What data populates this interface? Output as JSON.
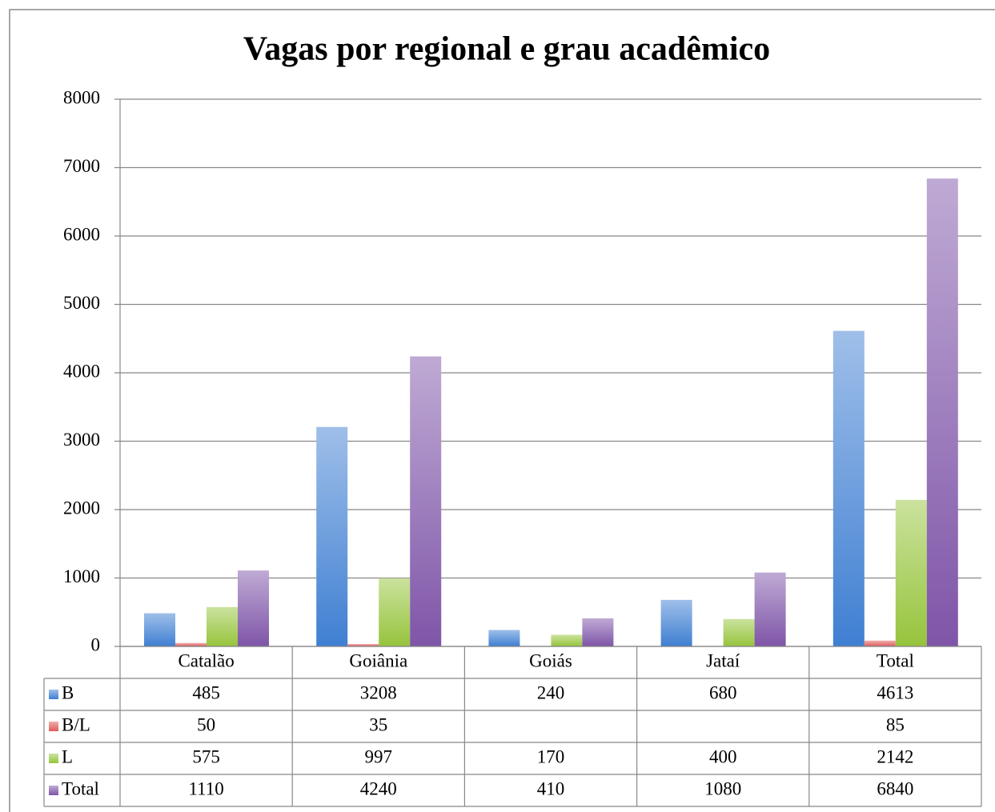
{
  "chart_data": {
    "type": "bar",
    "title": "Vagas por regional e grau acadêmico",
    "categories": [
      "Catalão",
      "Goiânia",
      "Goiás",
      "Jataí",
      "Total"
    ],
    "series": [
      {
        "name": "B",
        "color": "#3f7fd2",
        "values": [
          485,
          3208,
          240,
          680,
          4613
        ]
      },
      {
        "name": "B/L",
        "color": "#e05a5a",
        "values": [
          50,
          35,
          null,
          null,
          85
        ]
      },
      {
        "name": "L",
        "color": "#96c43c",
        "values": [
          575,
          997,
          170,
          400,
          2142
        ]
      },
      {
        "name": "Total",
        "color": "#7f55a8",
        "values": [
          1110,
          4240,
          410,
          1080,
          6840
        ]
      }
    ],
    "ylim": [
      0,
      8000
    ],
    "yticks": [
      0,
      1000,
      2000,
      3000,
      4000,
      5000,
      6000,
      7000,
      8000
    ],
    "grid": true,
    "legend": "table"
  }
}
